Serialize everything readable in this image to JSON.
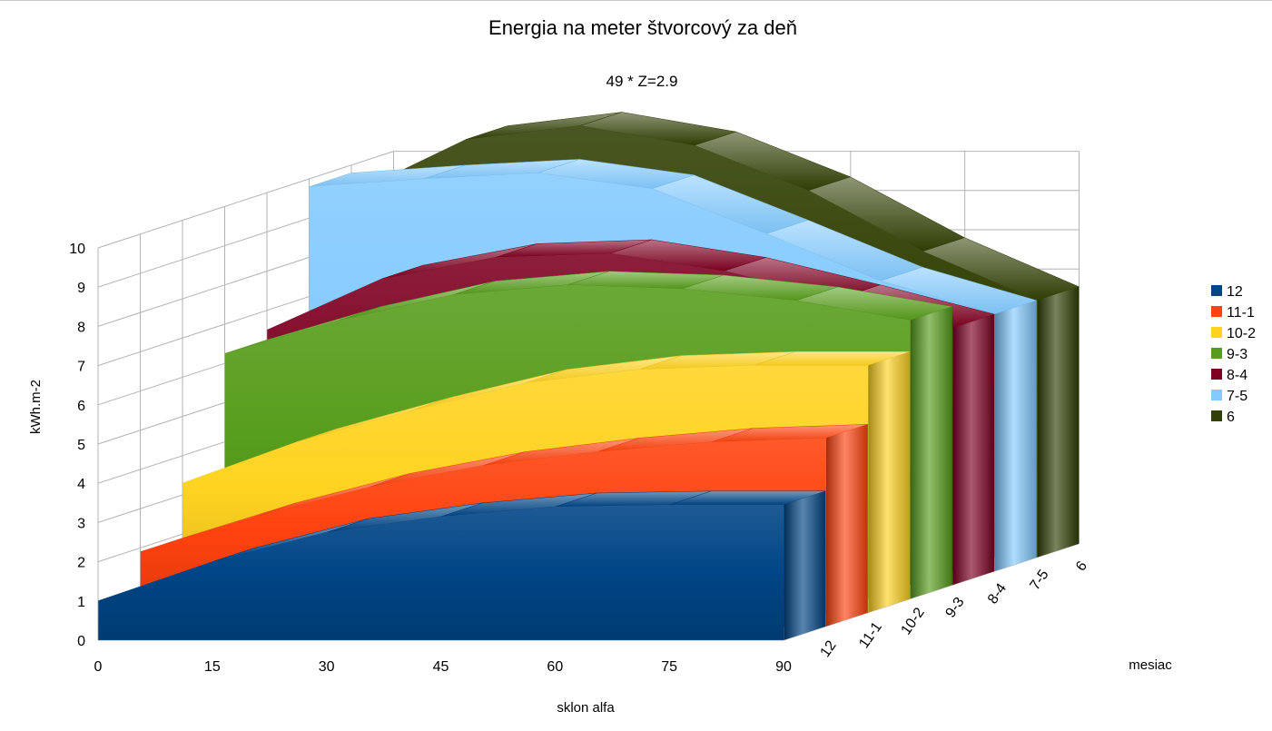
{
  "chart_data": {
    "type": "area",
    "render": "3d-deep",
    "title": "Energia na meter štvorcový za deň",
    "subtitle": "49 * Z=2.9",
    "xlabel": "sklon alfa",
    "ylabel": "kWh.m-2",
    "zlabel": "mesiac",
    "x": [
      0,
      15,
      30,
      45,
      60,
      75,
      90
    ],
    "ylim": [
      0,
      10
    ],
    "yticks": [
      0,
      1,
      2,
      3,
      4,
      5,
      6,
      7,
      8,
      9,
      10
    ],
    "legend_position": "right",
    "grid": true,
    "series": [
      {
        "name": "12",
        "color": "#004586",
        "values": [
          1.0,
          2.0,
          2.75,
          3.15,
          3.4,
          3.45,
          3.45
        ]
      },
      {
        "name": "11-1",
        "color": "#ff420e",
        "values": [
          1.9,
          2.8,
          3.55,
          4.1,
          4.45,
          4.7,
          4.8
        ]
      },
      {
        "name": "10-2",
        "color": "#ffd320",
        "values": [
          3.3,
          4.35,
          5.15,
          5.85,
          6.2,
          6.3,
          6.3
        ]
      },
      {
        "name": "9-3",
        "color": "#579d1c",
        "values": [
          6.25,
          7.1,
          7.75,
          8.0,
          7.9,
          7.6,
          7.1
        ]
      },
      {
        "name": "8-4",
        "color": "#7e0021",
        "values": [
          6.5,
          7.8,
          8.35,
          8.45,
          8.0,
          7.3,
          6.55
        ]
      },
      {
        "name": "7-5",
        "color": "#83caff",
        "values": [
          9.8,
          10.0,
          10.15,
          9.75,
          8.6,
          7.4,
          6.55
        ]
      },
      {
        "name": "6",
        "color": "#314004",
        "values": [
          9.25,
          10.65,
          11.0,
          10.5,
          9.35,
          7.8,
          6.55
        ]
      }
    ]
  }
}
